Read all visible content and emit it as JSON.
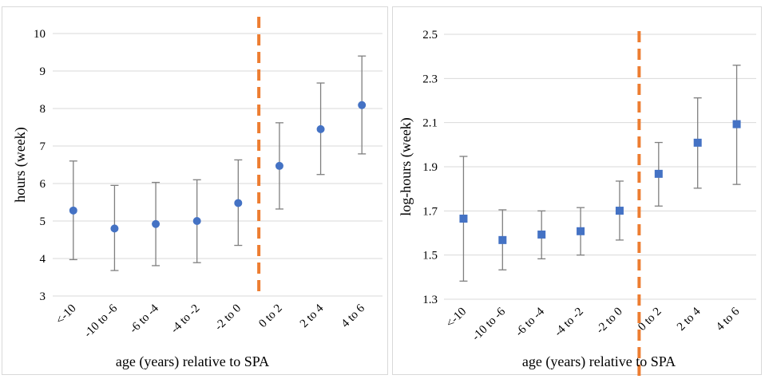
{
  "chart_data": [
    {
      "type": "scatter",
      "title": "",
      "xlabel": "age (years) relative to SPA",
      "ylabel": "hours (week)",
      "categories": [
        "<-10",
        "-10 to -6",
        "-6 to -4",
        "-4 to -2",
        "-2 to 0",
        "0 to 2",
        "2 to 4",
        "4 to 6"
      ],
      "series": [
        {
          "values": [
            5.28,
            4.8,
            4.92,
            5.0,
            5.48,
            6.47,
            7.45,
            8.09
          ],
          "lower": [
            3.97,
            3.68,
            3.81,
            3.89,
            4.35,
            5.32,
            6.24,
            6.79
          ],
          "upper": [
            6.6,
            5.95,
            6.03,
            6.1,
            6.63,
            7.62,
            8.68,
            9.4
          ],
          "marker": "circle",
          "color": "#4472c4"
        }
      ],
      "ylim": [
        3,
        10
      ],
      "yticks": [
        3,
        4,
        5,
        6,
        7,
        8,
        9,
        10
      ],
      "ytick_labels": [
        "3",
        "4",
        "5",
        "6",
        "7",
        "8",
        "9",
        "10"
      ],
      "grid": true,
      "error_bar_color": "#7f7f7f",
      "divider_after_category": "-2 to 0",
      "divider_color": "#ed7d31",
      "legend": "none"
    },
    {
      "type": "scatter",
      "title": "",
      "xlabel": "age (years) relative to SPA",
      "ylabel": "log-hours (week)",
      "categories": [
        "<-10",
        "-10 to -6",
        "-6 to -4",
        "-4 to -2",
        "-2 to 0",
        "0 to 2",
        "2 to 4",
        "4 to 6"
      ],
      "series": [
        {
          "values": [
            1.665,
            1.568,
            1.593,
            1.608,
            1.701,
            1.868,
            2.009,
            2.093
          ],
          "lower": [
            1.382,
            1.433,
            1.483,
            1.5,
            1.568,
            1.722,
            1.803,
            1.82
          ],
          "upper": [
            1.947,
            1.705,
            1.7,
            1.715,
            1.835,
            2.01,
            2.212,
            2.36
          ],
          "marker": "square",
          "color": "#4472c4"
        }
      ],
      "ylim": [
        1.3,
        2.5
      ],
      "yticks": [
        1.3,
        1.5,
        1.7,
        1.9,
        2.1,
        2.3,
        2.5
      ],
      "ytick_labels": [
        "1.3",
        "1.5",
        "1.7",
        "1.9",
        "2.1",
        "2.3",
        "2.5"
      ],
      "grid": true,
      "error_bar_color": "#7f7f7f",
      "divider_after_category": "-2 to 0",
      "divider_color": "#ed7d31",
      "legend": "none"
    }
  ]
}
